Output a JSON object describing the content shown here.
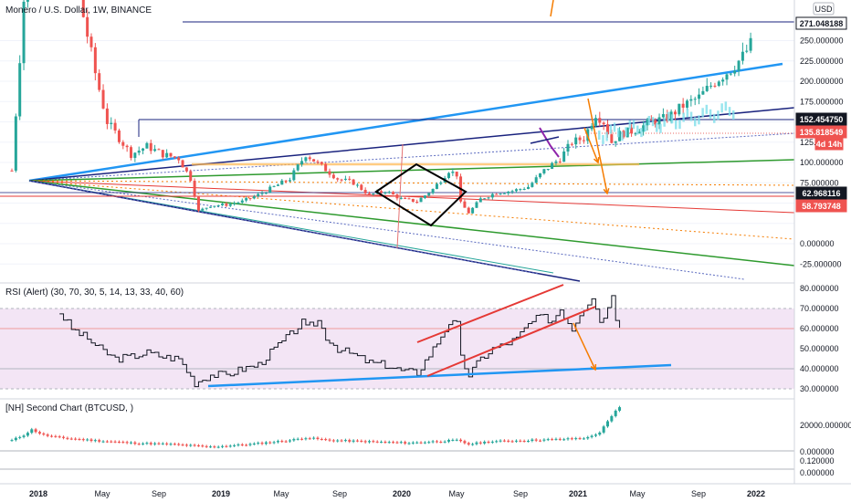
{
  "header": {
    "symbol_title": "Monero / U.S. Dollar, 1W, BINANCE",
    "currency_badge": "USD"
  },
  "rsi_panel": {
    "title": "RSI (Alert) (30, 70, 30, 5, 14, 13, 33, 40, 60)"
  },
  "second_panel": {
    "title": "[NH] Second Chart (BTCUSD, )"
  },
  "price_badges": [
    {
      "text": "271.048188",
      "bg": "#ffffff",
      "fg": "#131722",
      "border": "#131722"
    },
    {
      "text": "152.454750",
      "bg": "#131722",
      "fg": "#ffffff",
      "border": "#131722"
    },
    {
      "text": "135.818549",
      "bg": "#ef5350",
      "fg": "#ffffff",
      "border": "#ef5350"
    },
    {
      "text": "4d 14h",
      "bg": "#ef5350",
      "fg": "#ffffff",
      "border": "#ef5350"
    },
    {
      "text": "62.968116",
      "bg": "#131722",
      "fg": "#ffffff",
      "border": "#131722"
    },
    {
      "text": "58.793748",
      "bg": "#ef5350",
      "fg": "#ffffff",
      "border": "#ef5350"
    }
  ],
  "colors": {
    "up": "#26a69a",
    "down": "#ef5350",
    "navy": "#1a237e",
    "blue": "#2196f3",
    "green": "#2e9a2e",
    "orange": "#f57c00",
    "red": "#e53935",
    "rsi_line": "#131722",
    "rsi_band": "#f3e5f5"
  },
  "chart_data": [
    {
      "type": "candlestick",
      "title": "Monero / U.S. Dollar, 1W, BINANCE",
      "ylim": [
        -40,
        280
      ],
      "y_ticks": [
        "250.000000",
        "225.000000",
        "200.000000",
        "175.000000",
        "125.000000",
        "100.000000",
        "75.000000",
        "0.000000",
        "-25.000000"
      ],
      "x_ticks": [
        "2018",
        "May",
        "Sep",
        "2019",
        "May",
        "Sep",
        "2020",
        "May",
        "Sep",
        "2021",
        "May",
        "Sep",
        "2022"
      ],
      "close_anchors": [
        {
          "t": 0,
          "v": 90
        },
        {
          "t": 3,
          "v": 300
        },
        {
          "t": 6,
          "v": 440
        },
        {
          "t": 9,
          "v": 380
        },
        {
          "t": 12,
          "v": 350
        },
        {
          "t": 15,
          "v": 370
        },
        {
          "t": 18,
          "v": 280
        },
        {
          "t": 21,
          "v": 210
        },
        {
          "t": 24,
          "v": 150
        },
        {
          "t": 27,
          "v": 130
        },
        {
          "t": 30,
          "v": 110
        },
        {
          "t": 34,
          "v": 120
        },
        {
          "t": 38,
          "v": 110
        },
        {
          "t": 42,
          "v": 105
        },
        {
          "t": 45,
          "v": 80
        },
        {
          "t": 47,
          "v": 40
        },
        {
          "t": 50,
          "v": 47
        },
        {
          "t": 54,
          "v": 48
        },
        {
          "t": 58,
          "v": 52
        },
        {
          "t": 62,
          "v": 60
        },
        {
          "t": 66,
          "v": 70
        },
        {
          "t": 70,
          "v": 80
        },
        {
          "t": 74,
          "v": 110
        },
        {
          "t": 78,
          "v": 95
        },
        {
          "t": 82,
          "v": 80
        },
        {
          "t": 86,
          "v": 75
        },
        {
          "t": 90,
          "v": 60
        },
        {
          "t": 94,
          "v": 65
        },
        {
          "t": 98,
          "v": 55
        },
        {
          "t": 102,
          "v": 52
        },
        {
          "t": 106,
          "v": 67
        },
        {
          "t": 110,
          "v": 90
        },
        {
          "t": 112,
          "v": 85
        },
        {
          "t": 113,
          "v": 50
        },
        {
          "t": 115,
          "v": 38
        },
        {
          "t": 118,
          "v": 55
        },
        {
          "t": 122,
          "v": 63
        },
        {
          "t": 126,
          "v": 65
        },
        {
          "t": 130,
          "v": 70
        },
        {
          "t": 134,
          "v": 90
        },
        {
          "t": 138,
          "v": 105
        },
        {
          "t": 141,
          "v": 125
        },
        {
          "t": 144,
          "v": 130
        },
        {
          "t": 147,
          "v": 160
        },
        {
          "t": 149,
          "v": 150
        },
        {
          "t": 151,
          "v": 125
        },
        {
          "t": 153,
          "v": 135
        },
        {
          "t": 157,
          "v": 140
        },
        {
          "t": 161,
          "v": 150
        },
        {
          "t": 165,
          "v": 155
        },
        {
          "t": 169,
          "v": 170
        },
        {
          "t": 173,
          "v": 180
        },
        {
          "t": 177,
          "v": 200
        },
        {
          "t": 181,
          "v": 215
        },
        {
          "t": 184,
          "v": 230
        },
        {
          "t": 186,
          "v": 245
        }
      ]
    },
    {
      "type": "line",
      "title": "RSI (Alert) (30, 70, 30, 5, 14, 13, 33, 40, 60)",
      "ylim": [
        25,
        82
      ],
      "y_ticks": [
        "80.000000",
        "70.000000",
        "60.000000",
        "50.000000",
        "40.000000",
        "30.000000"
      ],
      "bands": {
        "upper": 70,
        "lower": 30,
        "level60": 60,
        "level40": 40
      },
      "rsi_anchors": [
        {
          "t": 12,
          "v": 68
        },
        {
          "t": 15,
          "v": 60
        },
        {
          "t": 19,
          "v": 55
        },
        {
          "t": 22,
          "v": 50
        },
        {
          "t": 26,
          "v": 45
        },
        {
          "t": 30,
          "v": 46
        },
        {
          "t": 34,
          "v": 48
        },
        {
          "t": 38,
          "v": 46
        },
        {
          "t": 42,
          "v": 45
        },
        {
          "t": 46,
          "v": 33
        },
        {
          "t": 50,
          "v": 37
        },
        {
          "t": 54,
          "v": 37
        },
        {
          "t": 58,
          "v": 40
        },
        {
          "t": 62,
          "v": 42
        },
        {
          "t": 66,
          "v": 50
        },
        {
          "t": 70,
          "v": 57
        },
        {
          "t": 73,
          "v": 63
        },
        {
          "t": 74,
          "v": 60
        },
        {
          "t": 77,
          "v": 64
        },
        {
          "t": 79,
          "v": 56
        },
        {
          "t": 82,
          "v": 50
        },
        {
          "t": 86,
          "v": 47
        },
        {
          "t": 90,
          "v": 43
        },
        {
          "t": 94,
          "v": 42
        },
        {
          "t": 98,
          "v": 39
        },
        {
          "t": 102,
          "v": 38
        },
        {
          "t": 106,
          "v": 50
        },
        {
          "t": 110,
          "v": 63
        },
        {
          "t": 112,
          "v": 62
        },
        {
          "t": 113,
          "v": 45
        },
        {
          "t": 115,
          "v": 37
        },
        {
          "t": 118,
          "v": 45
        },
        {
          "t": 121,
          "v": 50
        },
        {
          "t": 124,
          "v": 52
        },
        {
          "t": 127,
          "v": 55
        },
        {
          "t": 130,
          "v": 62
        },
        {
          "t": 133,
          "v": 66
        },
        {
          "t": 136,
          "v": 64
        },
        {
          "t": 138,
          "v": 70
        },
        {
          "t": 141,
          "v": 60
        },
        {
          "t": 143,
          "v": 68
        },
        {
          "t": 146,
          "v": 76
        },
        {
          "t": 148,
          "v": 64
        },
        {
          "t": 150,
          "v": 70
        },
        {
          "t": 151,
          "v": 78
        },
        {
          "t": 152,
          "v": 66
        },
        {
          "t": 153,
          "v": 62
        }
      ]
    },
    {
      "type": "candlestick",
      "title": "[NH] Second Chart (BTCUSD, )",
      "y_ticks": [
        "20000.000000",
        "0.000000"
      ],
      "lower_axis_ticks": [
        "0.120000",
        "0.000000"
      ]
    }
  ]
}
